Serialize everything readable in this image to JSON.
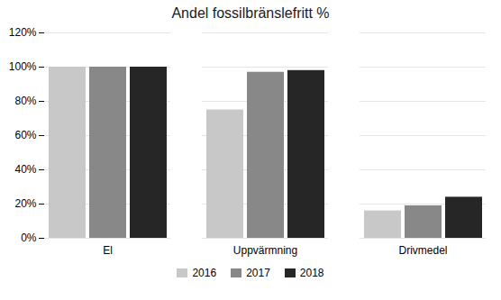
{
  "chart_data": {
    "type": "bar",
    "title": "Andel fossilbränslefritt %",
    "categories": [
      "El",
      "Uppvärmning",
      "Drivmedel"
    ],
    "series": [
      {
        "name": "2016",
        "color": "#c8c8c8",
        "values": [
          1.0,
          0.75,
          0.16
        ]
      },
      {
        "name": "2017",
        "color": "#888888",
        "values": [
          1.0,
          0.97,
          0.19
        ]
      },
      {
        "name": "2018",
        "color": "#262626",
        "values": [
          1.0,
          0.98,
          0.24
        ]
      }
    ],
    "ylim": [
      0,
      1.2
    ],
    "yticks": [
      {
        "value": 0.0,
        "label": "0%"
      },
      {
        "value": 0.2,
        "label": "20%"
      },
      {
        "value": 0.4,
        "label": "40%"
      },
      {
        "value": 0.6,
        "label": "60%"
      },
      {
        "value": 0.8,
        "label": "80%"
      },
      {
        "value": 1.0,
        "label": "100%"
      },
      {
        "value": 1.2,
        "label": "120%"
      }
    ],
    "grid": true,
    "legend": "bottom"
  }
}
